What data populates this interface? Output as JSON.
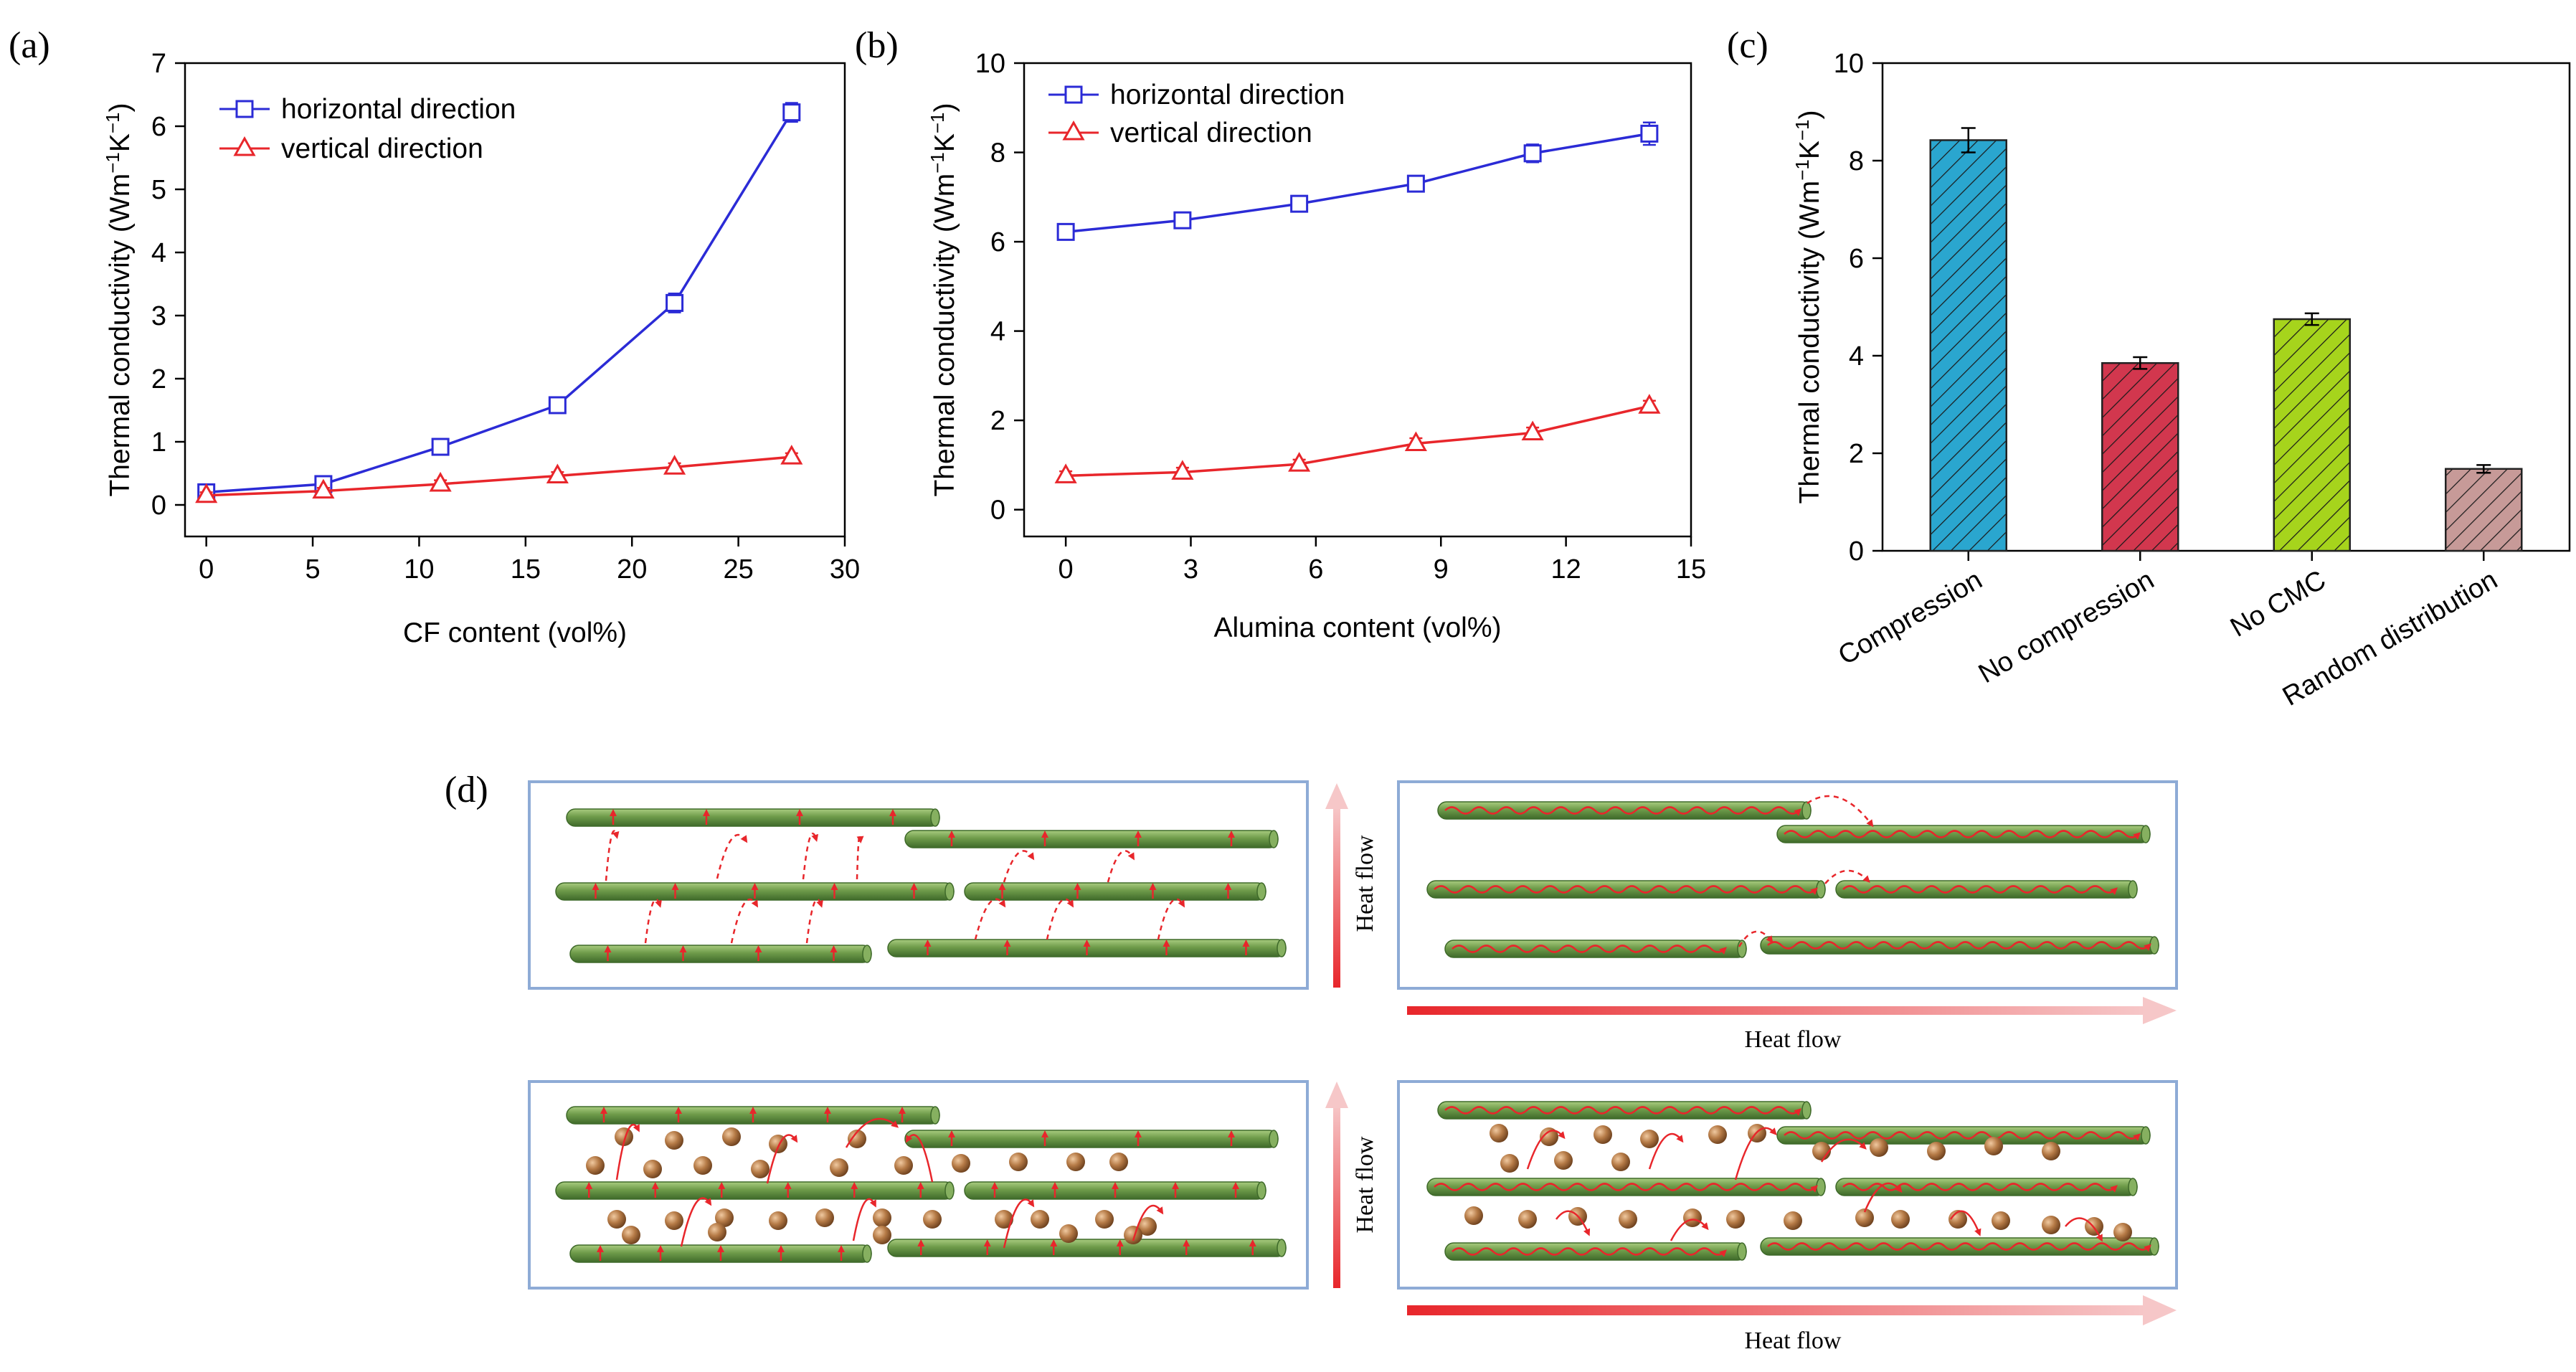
{
  "panels": {
    "a": "(a)",
    "b": "(b)",
    "c": "(c)",
    "d": "(d)"
  },
  "colors": {
    "horizontal": "#2b2bd6",
    "vertical": "#e8262b",
    "bar_compression": "#2aa6cf",
    "bar_no_compression": "#d2374e",
    "bar_no_cmc": "#a6d41c",
    "bar_random": "#c79a98",
    "fiber": "#6e9b4a",
    "particle": "#b57a46",
    "heat_arrow": "#e8262b",
    "panel_border": "#8eabd6"
  },
  "diagram": {
    "heat_flow_vertical_top": "Heat flow",
    "heat_flow_vertical_bottom": "Heat flow",
    "heat_flow_horizontal_top": "Heat flow",
    "heat_flow_horizontal_bottom": "Heat flow"
  },
  "chart_data": [
    {
      "id": "a",
      "type": "line",
      "xlabel": "CF content (vol%)",
      "ylabel_main": "Thermal conductivity (Wm",
      "ylabel_sup1": "−1",
      "ylabel_mid": "K",
      "ylabel_sup2": "−1",
      "ylabel_end": ")",
      "xlim": [
        -1,
        30
      ],
      "ylim": [
        -0.5,
        7
      ],
      "xticks": [
        0,
        5,
        10,
        15,
        20,
        25,
        30
      ],
      "yticks": [
        0,
        1,
        2,
        3,
        4,
        5,
        6,
        7
      ],
      "legend_position": "top-left",
      "series": [
        {
          "name": "horizontal direction",
          "marker": "square",
          "color": "#2b2bd6",
          "x": [
            0,
            5.5,
            11,
            16.5,
            22,
            27.5
          ],
          "y": [
            0.2,
            0.33,
            0.92,
            1.58,
            3.2,
            6.22
          ],
          "err": [
            0.08,
            0.08,
            0.1,
            0.1,
            0.15,
            0.15
          ]
        },
        {
          "name": "vertical direction",
          "marker": "triangle",
          "color": "#e8262b",
          "x": [
            0,
            5.5,
            11,
            16.5,
            22,
            27.5
          ],
          "y": [
            0.15,
            0.22,
            0.33,
            0.46,
            0.6,
            0.76
          ],
          "err": [
            0.05,
            0.05,
            0.06,
            0.06,
            0.06,
            0.06
          ]
        }
      ]
    },
    {
      "id": "b",
      "type": "line",
      "xlabel": "Alumina content (vol%)",
      "ylabel_main": "Thermal conductivity (Wm",
      "ylabel_sup1": "−1",
      "ylabel_mid": "K",
      "ylabel_sup2": "−1",
      "ylabel_end": ")",
      "xlim": [
        -1,
        15
      ],
      "ylim": [
        -0.6,
        10
      ],
      "xticks": [
        0,
        3,
        6,
        9,
        12,
        15
      ],
      "yticks": [
        0,
        2,
        4,
        6,
        8,
        10
      ],
      "legend_position": "top-left",
      "series": [
        {
          "name": "horizontal direction",
          "marker": "square",
          "color": "#2b2bd6",
          "x": [
            0,
            2.8,
            5.6,
            8.4,
            11.2,
            14
          ],
          "y": [
            6.22,
            6.48,
            6.85,
            7.3,
            7.98,
            8.42
          ],
          "err": [
            0.12,
            0.12,
            0.15,
            0.15,
            0.2,
            0.25
          ]
        },
        {
          "name": "vertical direction",
          "marker": "triangle",
          "color": "#e8262b",
          "x": [
            0,
            2.8,
            5.6,
            8.4,
            11.2,
            14
          ],
          "y": [
            0.76,
            0.84,
            1.02,
            1.48,
            1.72,
            2.32
          ],
          "err": [
            0.1,
            0.1,
            0.1,
            0.12,
            0.12,
            0.12
          ]
        }
      ]
    },
    {
      "id": "c",
      "type": "bar",
      "ylabel_main": "Thermal conductivity (Wm",
      "ylabel_sup1": "−1",
      "ylabel_mid": "K",
      "ylabel_sup2": "−1",
      "ylabel_end": ")",
      "ylim": [
        0,
        10
      ],
      "yticks": [
        0,
        2,
        4,
        6,
        8,
        10
      ],
      "categories": [
        "Compression",
        "No compression",
        "No CMC",
        "Random distribution"
      ],
      "values": [
        8.42,
        3.85,
        4.75,
        1.68
      ],
      "err": [
        0.25,
        0.12,
        0.12,
        0.08
      ],
      "colors": [
        "#2aa6cf",
        "#d2374e",
        "#a6d41c",
        "#c79a98"
      ]
    }
  ]
}
